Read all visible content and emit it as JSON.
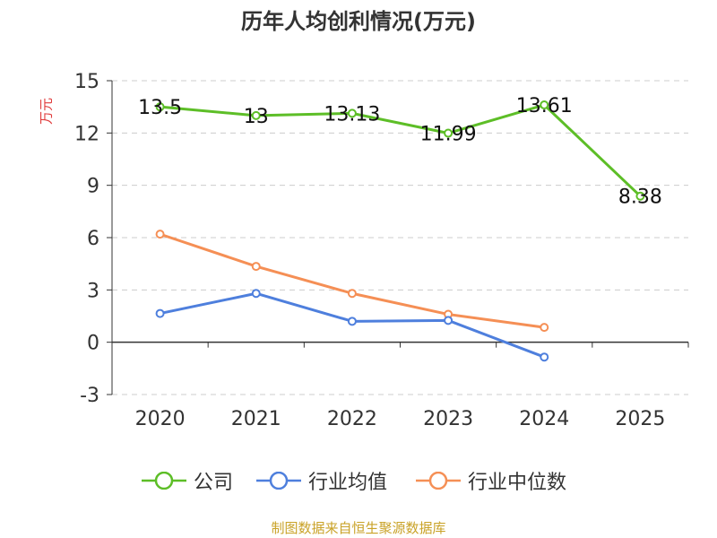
{
  "chart_data": {
    "type": "line",
    "title": "历年人均创利情况(万元)",
    "ylabel": "万元",
    "xlabel": "",
    "categories": [
      "2020",
      "2021",
      "2022",
      "2023",
      "2024",
      "2025"
    ],
    "ylim": [
      -3,
      15
    ],
    "yticks": [
      "15",
      "12",
      "9",
      "6",
      "3",
      "0",
      "-3"
    ],
    "grid": true,
    "legend_position": "bottom",
    "series": [
      {
        "name": "公司",
        "color": "#5dbe27",
        "values": [
          13.5,
          13,
          13.13,
          11.99,
          13.61,
          8.38
        ],
        "labels": [
          "13.5",
          "13",
          "13.13",
          "11.99",
          "13.61",
          "8.38"
        ]
      },
      {
        "name": "行业均值",
        "color": "#4e7fdd",
        "values": [
          1.65,
          2.8,
          1.2,
          1.25,
          -0.85,
          null
        ]
      },
      {
        "name": "行业中位数",
        "color": "#f58f55",
        "values": [
          6.2,
          4.35,
          2.8,
          1.6,
          0.85,
          null
        ]
      }
    ]
  },
  "footer": "制图数据来自恒生聚源数据库"
}
